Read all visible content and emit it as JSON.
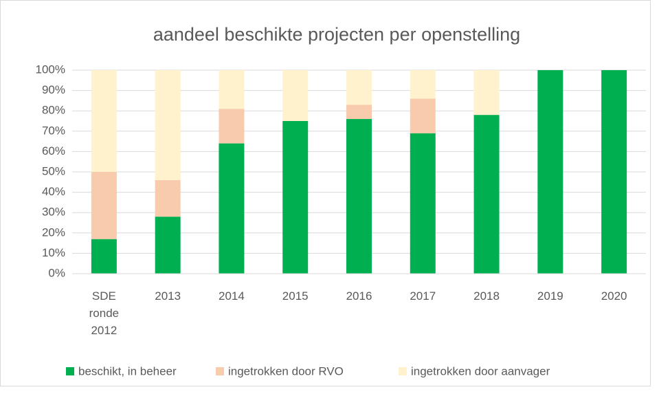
{
  "chart_data": {
    "type": "stacked_bar",
    "title": "aandeel beschikte projecten per openstelling",
    "categories": [
      "SDE ronde 2012",
      "2013",
      "2014",
      "2015",
      "2016",
      "2017",
      "2018",
      "2019",
      "2020"
    ],
    "series": [
      {
        "name": "beschikt, in beheer",
        "color": "#00b050",
        "values": [
          17,
          28,
          64,
          75,
          76,
          69,
          78,
          100,
          100
        ]
      },
      {
        "name": "ingetrokken door RVO",
        "color": "#f8cbad",
        "values": [
          33,
          18,
          17,
          0,
          7,
          17,
          0,
          0,
          0
        ]
      },
      {
        "name": "ingetrokken door aanvager",
        "color": "#fff2cc",
        "values": [
          50,
          54,
          19,
          25,
          17,
          14,
          22,
          0,
          0
        ]
      }
    ],
    "ylim": [
      0,
      100
    ],
    "yticks": [
      {
        "value": 0,
        "label": "0%"
      },
      {
        "value": 10,
        "label": "10%"
      },
      {
        "value": 20,
        "label": "20%"
      },
      {
        "value": 30,
        "label": "30%"
      },
      {
        "value": 40,
        "label": "40%"
      },
      {
        "value": 50,
        "label": "50%"
      },
      {
        "value": 60,
        "label": "60%"
      },
      {
        "value": 70,
        "label": "70%"
      },
      {
        "value": 80,
        "label": "80%"
      },
      {
        "value": 90,
        "label": "90%"
      },
      {
        "value": 100,
        "label": "100%"
      }
    ],
    "grid": true,
    "legend": "bottom"
  }
}
